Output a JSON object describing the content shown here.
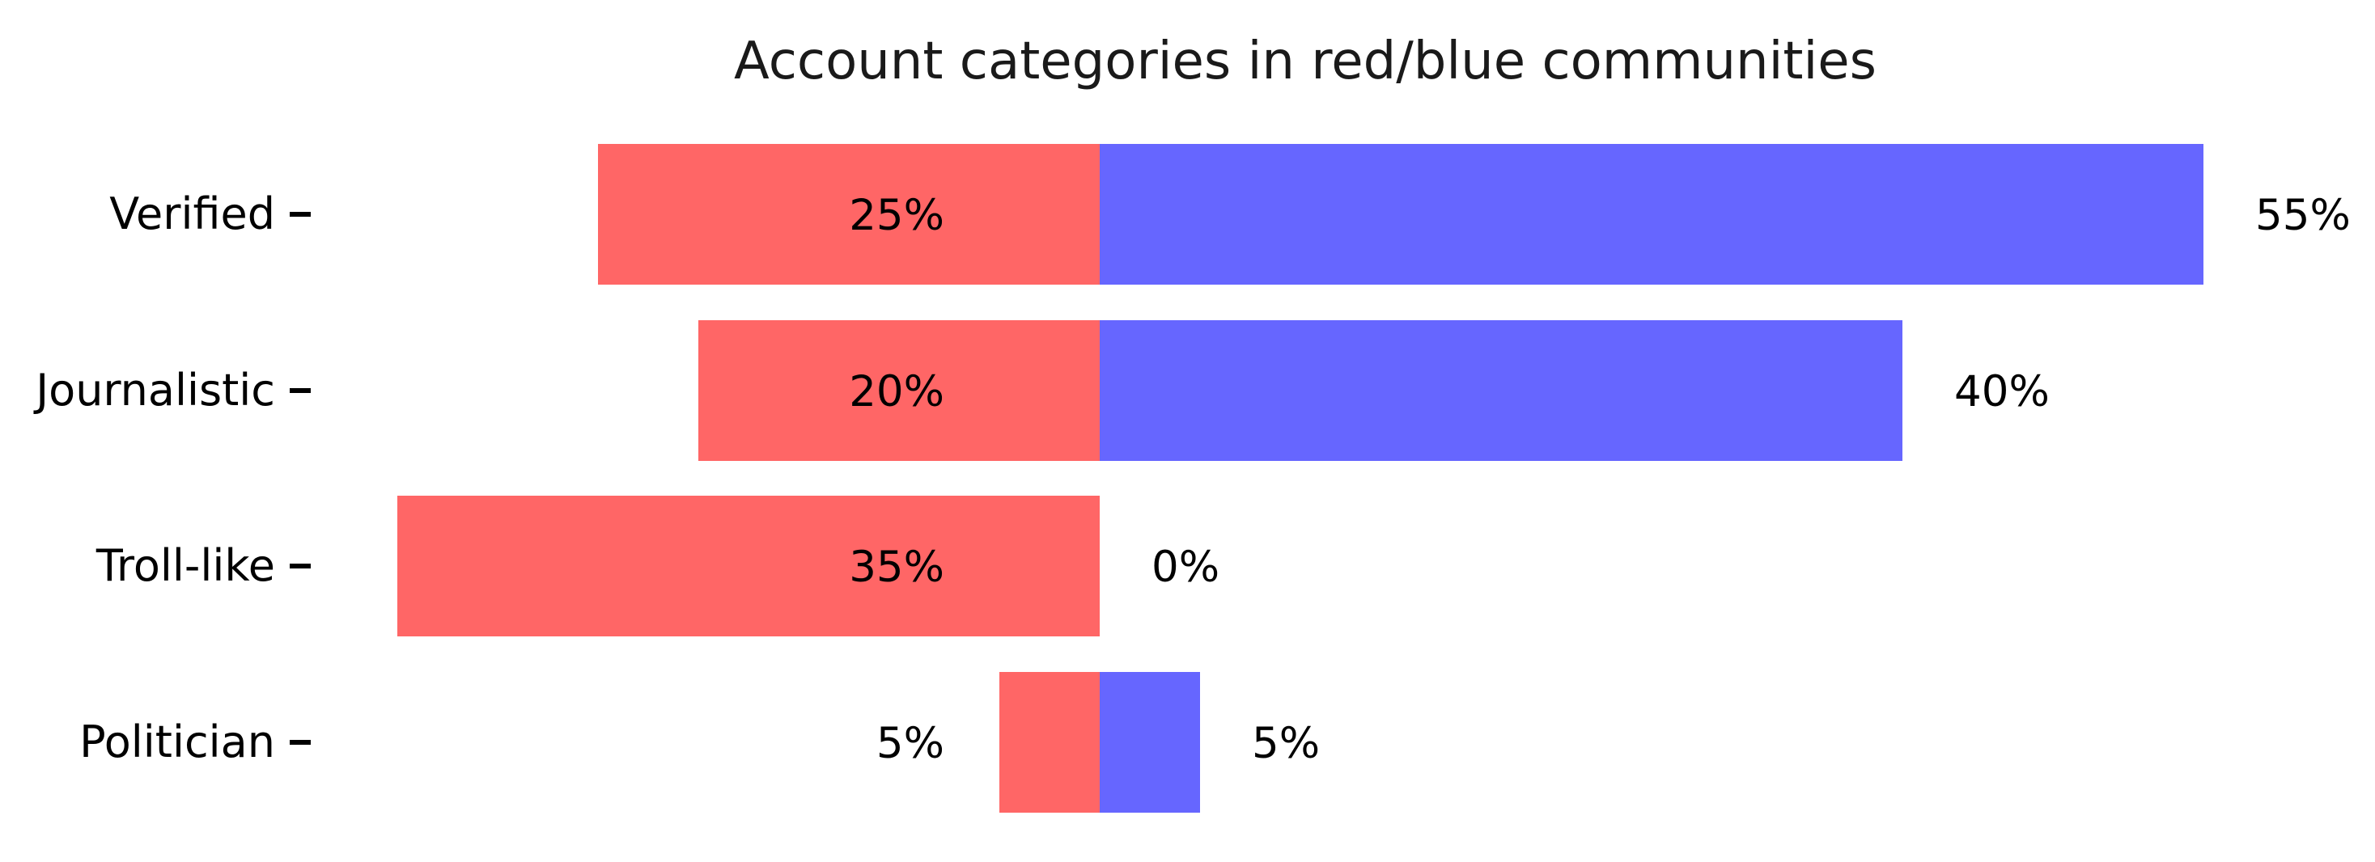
{
  "chart_data": {
    "type": "bar",
    "orientation": "horizontal-diverging",
    "title": "Account categories in red/blue communities",
    "categories": [
      "Verified",
      "Journalistic",
      "Troll-like",
      "Politician"
    ],
    "series": [
      {
        "name": "red community",
        "color": "#ff6666",
        "values": [
          25,
          20,
          35,
          5
        ]
      },
      {
        "name": "blue community",
        "color": "#6666ff",
        "values": [
          55,
          40,
          0,
          5
        ]
      }
    ],
    "value_labels": {
      "red": [
        "25%",
        "20%",
        "35%",
        "5%"
      ],
      "blue": [
        "55%",
        "40%",
        "0%",
        "5%"
      ]
    },
    "unit": "%",
    "axis": {
      "value_range_left_of_center": 40,
      "value_range_right_of_center": 65,
      "center_value": 0,
      "grid": false,
      "legend": false,
      "x_axis_visible": false,
      "y_tick_marks": true
    },
    "colors": {
      "red_bar": "#ff6666",
      "blue_bar": "#6666ff",
      "text": "#000000",
      "title_text": "#1a1a1a",
      "background": "#ffffff"
    }
  }
}
